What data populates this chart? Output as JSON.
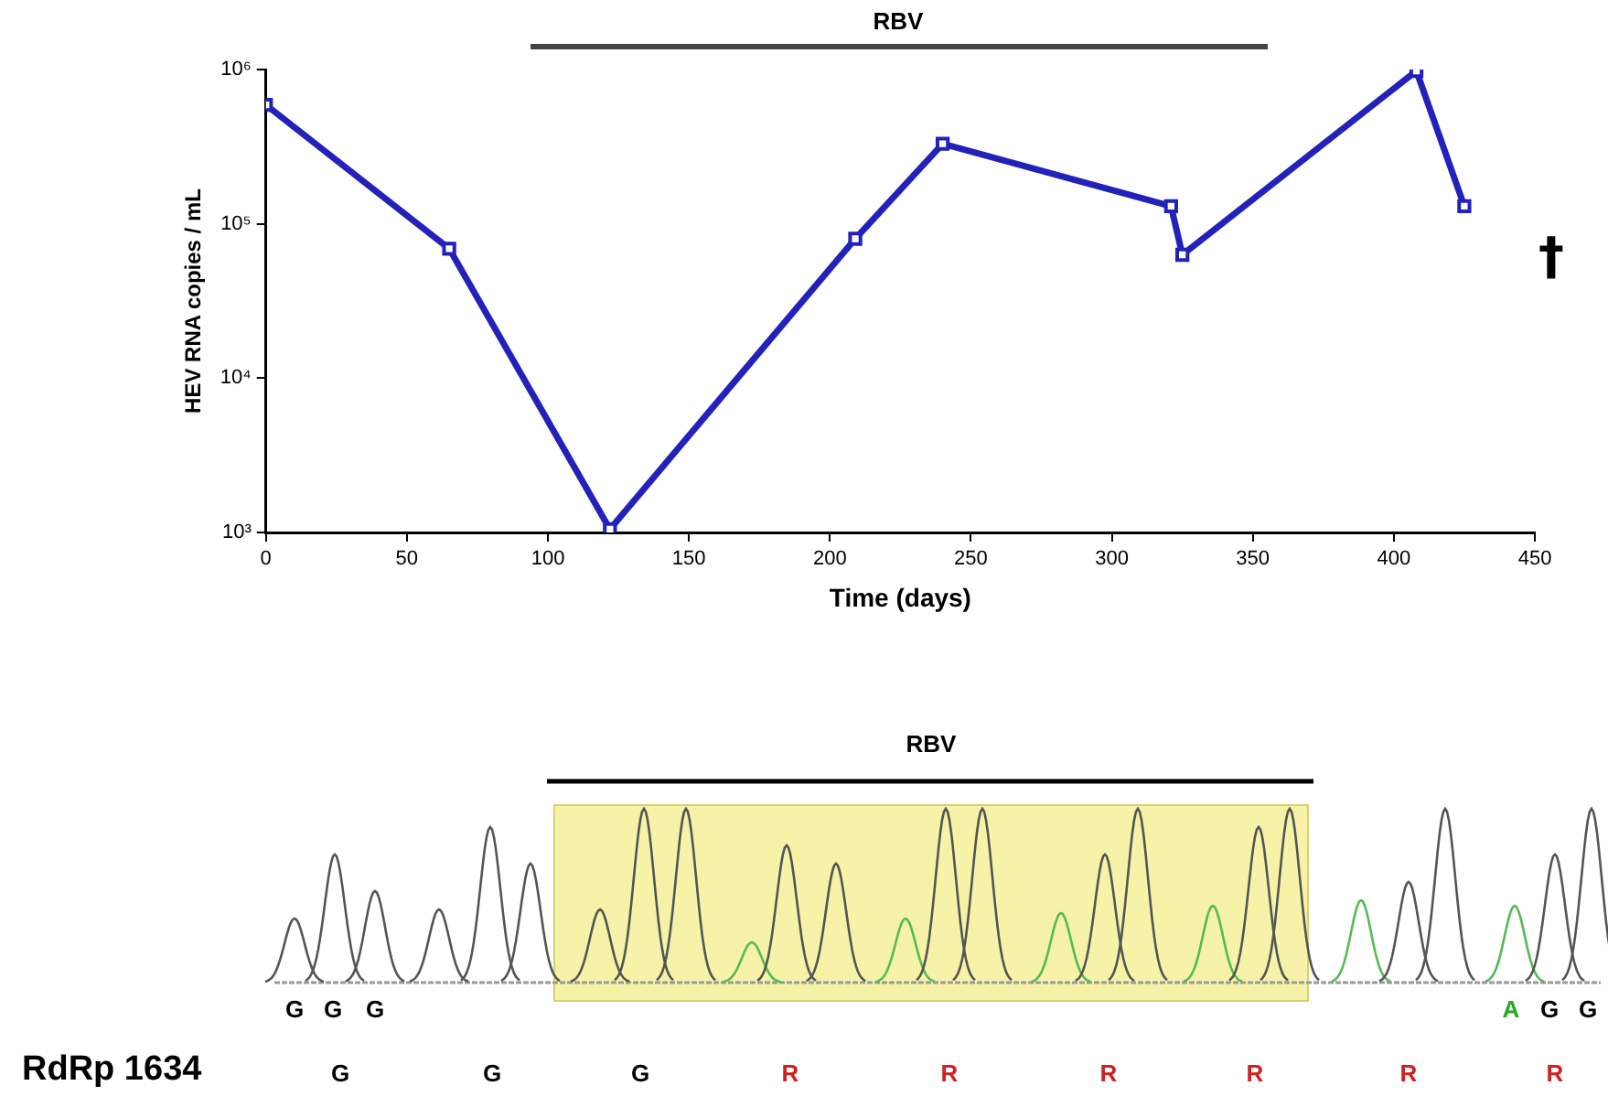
{
  "chart_data": [
    {
      "type": "line",
      "xlabel": "Time (days)",
      "ylabel": "HEV RNA copies / mL",
      "series": [
        {
          "color": "#2222bb",
          "x": [
            0,
            65,
            122,
            209,
            240,
            321,
            325,
            408,
            425
          ],
          "values": [
            590000,
            69000,
            1050,
            80000,
            330000,
            130000,
            63000,
            980000,
            130000
          ]
        }
      ],
      "xlim": [
        0,
        450
      ],
      "xticks": [
        0,
        50,
        100,
        150,
        200,
        250,
        300,
        350,
        400,
        450
      ],
      "ylim": [
        1000,
        1000000
      ],
      "yticks": [
        {
          "value": 1000,
          "label": "10³"
        },
        {
          "value": 10000,
          "label": "10⁴"
        },
        {
          "value": 100000,
          "label": "10⁵"
        },
        {
          "value": 1000000,
          "label": "10⁶"
        }
      ],
      "log": "y",
      "grid": false,
      "legend": false,
      "marker": "square",
      "line_style": "solid",
      "annotations": [
        "RBV",
        "†"
      ]
    },
    {
      "type": "other",
      "annotations": [
        "RBV",
        "G",
        "G",
        "G",
        "A",
        "G",
        "G",
        "RdRp 1634",
        "G",
        "G",
        "G",
        "R",
        "R",
        "R",
        "R",
        "R",
        "R"
      ]
    }
  ]
}
